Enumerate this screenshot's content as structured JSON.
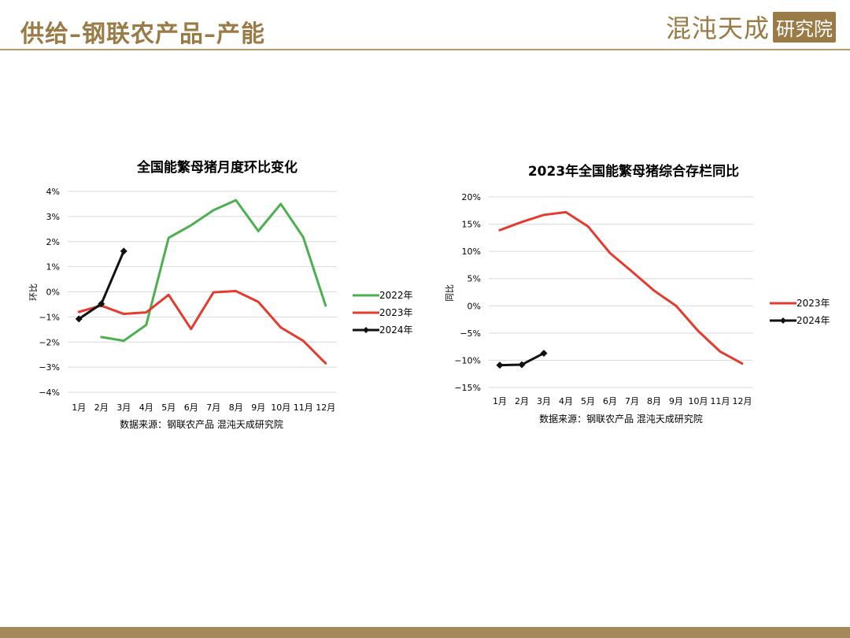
{
  "header": {
    "title": "供给–钢联农产品–产能",
    "logo_text": "混沌天成",
    "logo_seal": "研究院"
  },
  "colors": {
    "brand": "#9a7a45",
    "s2022": "#4caf50",
    "s2023": "#e53a2e",
    "s2024": "#111111"
  },
  "chart_data": [
    {
      "type": "line",
      "title": "全国能繁母猪月度环比变化",
      "ylabel": "环比",
      "source": "数据来源：钢联农产品 混沌天成研究院",
      "categories": [
        "1月",
        "2月",
        "3月",
        "4月",
        "5月",
        "6月",
        "7月",
        "8月",
        "9月",
        "10月",
        "11月",
        "12月"
      ],
      "ylim": [
        -4,
        4
      ],
      "yticks": [
        "4%",
        "3%",
        "2%",
        "1%",
        "0%",
        "−1%",
        "−2%",
        "−3%",
        "−4%"
      ],
      "grid": true,
      "legend_position": "right",
      "series": [
        {
          "name": "2022年",
          "color": "#4caf50",
          "marker": "none",
          "values": [
            null,
            -1.8,
            -1.95,
            -1.32,
            2.15,
            2.65,
            3.25,
            3.65,
            2.42,
            3.5,
            2.18,
            -0.55
          ]
        },
        {
          "name": "2023年",
          "color": "#e53a2e",
          "marker": "none",
          "values": [
            -0.8,
            -0.55,
            -0.88,
            -0.82,
            -0.12,
            -1.48,
            -0.02,
            0.03,
            -0.4,
            -1.42,
            -1.95,
            -2.85
          ]
        },
        {
          "name": "2024年",
          "color": "#111111",
          "marker": "diamond",
          "values": [
            -1.08,
            -0.48,
            1.62,
            null,
            null,
            null,
            null,
            null,
            null,
            null,
            null,
            null
          ]
        }
      ]
    },
    {
      "type": "line",
      "title": "2023年全国能繁母猪综合存栏同比",
      "ylabel": "同比",
      "source": "数据来源：钢联农产品 混沌天成研究院",
      "categories": [
        "1月",
        "2月",
        "3月",
        "4月",
        "5月",
        "6月",
        "7月",
        "8月",
        "9月",
        "10月",
        "11月",
        "12月"
      ],
      "ylim": [
        -15,
        20
      ],
      "yticks": [
        "20%",
        "15%",
        "10%",
        "5%",
        "0%",
        "−5%",
        "−10%",
        "−15%"
      ],
      "grid": true,
      "legend_position": "right",
      "series": [
        {
          "name": "2023年",
          "color": "#e53a2e",
          "marker": "none",
          "values": [
            13.9,
            15.4,
            16.7,
            17.2,
            14.6,
            9.7,
            6.3,
            2.8,
            0.0,
            -4.6,
            -8.4,
            -10.6
          ]
        },
        {
          "name": "2024年",
          "color": "#111111",
          "marker": "diamond",
          "values": [
            -10.9,
            -10.8,
            -8.7,
            null,
            null,
            null,
            null,
            null,
            null,
            null,
            null,
            null
          ]
        }
      ]
    }
  ]
}
